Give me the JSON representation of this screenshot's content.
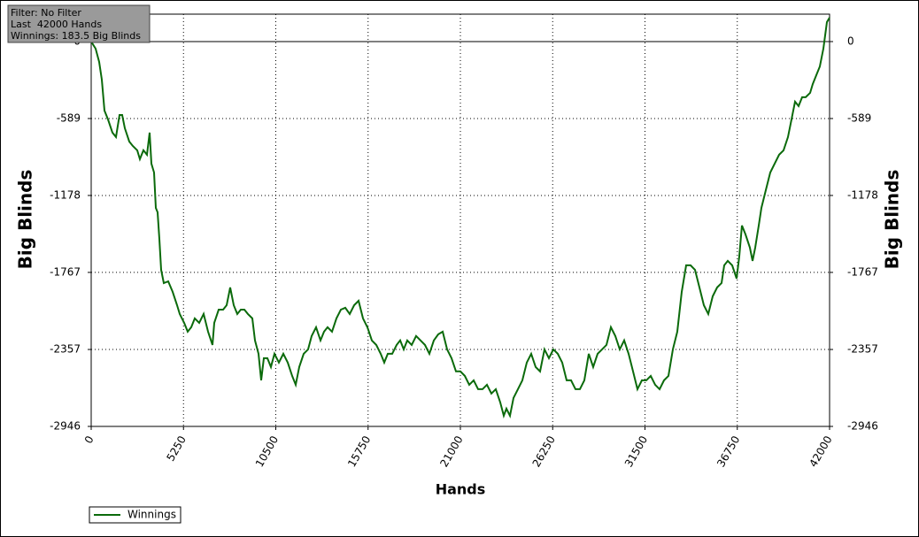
{
  "chart_data": {
    "type": "line",
    "annotations": [
      "Filter: No Filter",
      "Last  42000 Hands",
      "Winnings: 183.5 Big Blinds"
    ],
    "xlabel": "Hands",
    "ylabel": "Big Blinds",
    "xlim": [
      0,
      42000
    ],
    "xticks": [
      0,
      5250,
      10500,
      15750,
      21000,
      26250,
      31500,
      36750,
      42000
    ],
    "ylim": [
      -2946,
      210
    ],
    "yticks": [
      -2946,
      -2357,
      -1767,
      -1178,
      -589,
      0
    ],
    "grid": true,
    "legend": "bottom-left",
    "x": [
      0,
      252,
      453,
      604,
      755,
      957,
      1208,
      1410,
      1612,
      1763,
      1914,
      2165,
      2367,
      2619,
      2770,
      2971,
      3173,
      3324,
      3424,
      3576,
      3676,
      3777,
      3878,
      3978,
      4130,
      4381,
      4633,
      4885,
      5036,
      5288,
      5489,
      5691,
      5892,
      6144,
      6396,
      6648,
      6899,
      7000,
      7252,
      7504,
      7705,
      7906,
      8108,
      8309,
      8511,
      8712,
      8914,
      9166,
      9317,
      9518,
      9669,
      9820,
      10022,
      10223,
      10424,
      10676,
      10928,
      11180,
      11431,
      11633,
      11835,
      12086,
      12338,
      12540,
      12791,
      13043,
      13245,
      13446,
      13698,
      13950,
      14202,
      14453,
      14705,
      14957,
      15209,
      15460,
      15712,
      15964,
      16216,
      16468,
      16669,
      16871,
      17122,
      17374,
      17576,
      17777,
      17979,
      18230,
      18482,
      18734,
      18986,
      19238,
      19489,
      19741,
      19993,
      20245,
      20497,
      20748,
      21000,
      21252,
      21504,
      21756,
      22007,
      22259,
      22511,
      22763,
      23015,
      23266,
      23468,
      23619,
      23820,
      24022,
      24274,
      24525,
      24777,
      25029,
      25281,
      25533,
      25784,
      26036,
      26288,
      26540,
      26792,
      27043,
      27295,
      27547,
      27799,
      28051,
      28302,
      28554,
      28806,
      29058,
      29310,
      29561,
      29813,
      30065,
      30317,
      30569,
      30820,
      31072,
      31324,
      31576,
      31828,
      32079,
      32331,
      32583,
      32835,
      33087,
      33338,
      33590,
      33842,
      34094,
      34346,
      34597,
      34849,
      35101,
      35353,
      35605,
      35856,
      36007,
      36209,
      36461,
      36712,
      36864,
      37015,
      37216,
      37468,
      37619,
      37770,
      37972,
      38123,
      38374,
      38626,
      38878,
      39130,
      39382,
      39633,
      39835,
      40036,
      40238,
      40439,
      40641,
      40892,
      41043,
      41245,
      41446,
      41648,
      41849,
      42000
    ],
    "series": [
      {
        "name": "Winnings",
        "color": "#0b6a0b",
        "values": [
          0,
          -54,
          -156,
          -291,
          -528,
          -596,
          -697,
          -731,
          -562,
          -562,
          -663,
          -765,
          -799,
          -832,
          -900,
          -832,
          -866,
          -697,
          -934,
          -1002,
          -1273,
          -1307,
          -1510,
          -1747,
          -1849,
          -1835,
          -1916,
          -2018,
          -2085,
          -2153,
          -2221,
          -2187,
          -2119,
          -2153,
          -2085,
          -2221,
          -2322,
          -2153,
          -2052,
          -2052,
          -2018,
          -1882,
          -2018,
          -2085,
          -2052,
          -2052,
          -2085,
          -2119,
          -2288,
          -2390,
          -2593,
          -2424,
          -2424,
          -2491,
          -2390,
          -2457,
          -2390,
          -2457,
          -2559,
          -2627,
          -2491,
          -2390,
          -2356,
          -2254,
          -2187,
          -2288,
          -2221,
          -2187,
          -2221,
          -2119,
          -2052,
          -2038,
          -2085,
          -2018,
          -1984,
          -2119,
          -2187,
          -2288,
          -2322,
          -2390,
          -2457,
          -2390,
          -2390,
          -2322,
          -2288,
          -2356,
          -2288,
          -2322,
          -2254,
          -2288,
          -2322,
          -2390,
          -2288,
          -2241,
          -2221,
          -2356,
          -2424,
          -2525,
          -2525,
          -2559,
          -2627,
          -2593,
          -2661,
          -2661,
          -2627,
          -2694,
          -2661,
          -2762,
          -2864,
          -2810,
          -2864,
          -2728,
          -2661,
          -2593,
          -2457,
          -2390,
          -2491,
          -2525,
          -2356,
          -2424,
          -2356,
          -2390,
          -2457,
          -2593,
          -2593,
          -2661,
          -2661,
          -2593,
          -2390,
          -2491,
          -2390,
          -2356,
          -2322,
          -2187,
          -2254,
          -2356,
          -2288,
          -2390,
          -2525,
          -2661,
          -2593,
          -2593,
          -2559,
          -2627,
          -2661,
          -2593,
          -2559,
          -2356,
          -2221,
          -1916,
          -1713,
          -1713,
          -1747,
          -1882,
          -2018,
          -2085,
          -1950,
          -1882,
          -1848,
          -1713,
          -1679,
          -1713,
          -1814,
          -1645,
          -1408,
          -1476,
          -1577,
          -1679,
          -1577,
          -1408,
          -1273,
          -1137,
          -1002,
          -934,
          -866,
          -832,
          -731,
          -596,
          -460,
          -494,
          -426,
          -426,
          -393,
          -325,
          -257,
          -190,
          -54,
          149,
          183.5
        ]
      }
    ]
  }
}
